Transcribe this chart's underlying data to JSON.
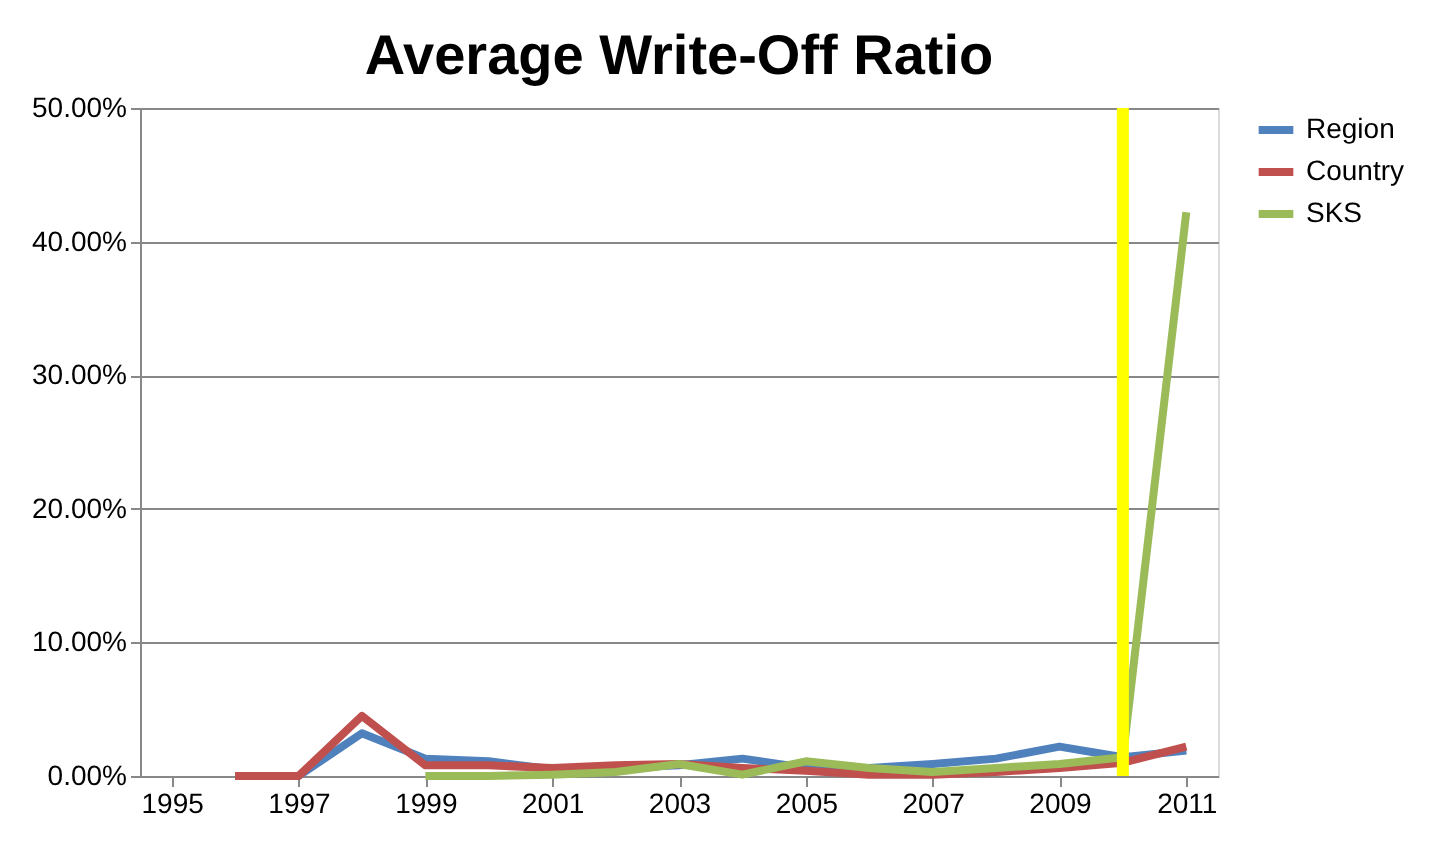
{
  "chart_data": {
    "type": "line",
    "title": "Average Write-Off Ratio",
    "x": [
      1996,
      1997,
      1998,
      1999,
      2000,
      2001,
      2002,
      2003,
      2004,
      2005,
      2006,
      2007,
      2008,
      2009,
      2010,
      2011
    ],
    "xlim": [
      1994.5,
      2011.5
    ],
    "xticks": [
      1995,
      1997,
      1999,
      2001,
      2003,
      2005,
      2007,
      2009,
      2011
    ],
    "ylim": [
      0,
      50
    ],
    "yticks": [
      {
        "value": 0,
        "label": "0.00%"
      },
      {
        "value": 10,
        "label": "10.00%"
      },
      {
        "value": 20,
        "label": "20.00%"
      },
      {
        "value": 30,
        "label": "30.00%"
      },
      {
        "value": 40,
        "label": "40.00%"
      },
      {
        "value": 50,
        "label": "50.00%"
      }
    ],
    "series": [
      {
        "name": "Region",
        "color": "#4f81bd",
        "values": [
          0,
          0,
          3.2,
          1.3,
          1.1,
          0.5,
          0.6,
          0.8,
          1.3,
          0.6,
          0.6,
          0.9,
          1.3,
          2.2,
          1.4,
          1.9
        ]
      },
      {
        "name": "Country",
        "color": "#c0504d",
        "values": [
          0,
          0,
          4.5,
          0.8,
          0.8,
          0.6,
          0.8,
          0.9,
          0.6,
          0.4,
          0.1,
          0.1,
          0.3,
          0.6,
          1.0,
          2.2
        ]
      },
      {
        "name": "SKS",
        "color": "#9bbb59",
        "values": [
          null,
          null,
          null,
          0,
          0,
          0.1,
          0.3,
          0.9,
          0.1,
          1.1,
          0.6,
          0.3,
          0.6,
          0.9,
          1.4,
          42.2
        ]
      }
    ],
    "ref_lines": [
      {
        "axis": "x",
        "value": 2010,
        "color": "#ffff00"
      }
    ],
    "grid": "y",
    "legend": "right",
    "marker": "none",
    "line_style": "solid"
  }
}
